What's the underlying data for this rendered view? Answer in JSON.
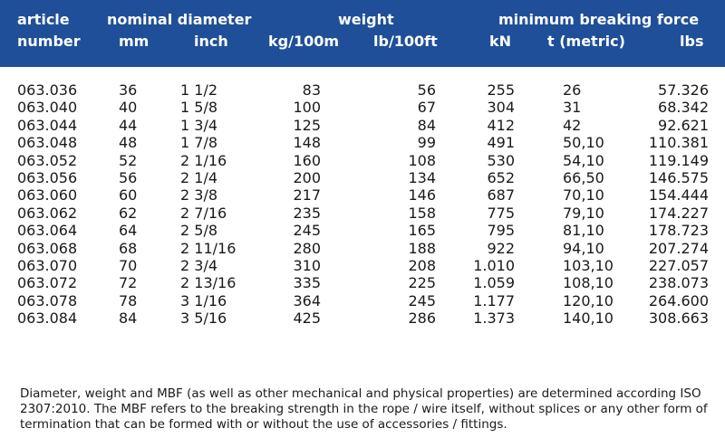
{
  "header": {
    "article_line1": "article",
    "article_line2": "number",
    "nominal_diameter": "nominal diameter",
    "mm": "mm",
    "inch": "inch",
    "weight": "weight",
    "kg100m": "kg/100m",
    "lb100ft": "lb/100ft",
    "mbf": "minimum breaking force",
    "kn": "kN",
    "tmetric": "t (metric)",
    "lbs": "lbs"
  },
  "rows": [
    {
      "article": "063.036",
      "mm": "36",
      "inch": "1 1/2",
      "kg": "83",
      "lb": "56",
      "kn": "255",
      "t": "26",
      "lbs": "57.326"
    },
    {
      "article": "063.040",
      "mm": "40",
      "inch": "1 5/8",
      "kg": "100",
      "lb": "67",
      "kn": "304",
      "t": "31",
      "lbs": "68.342"
    },
    {
      "article": "063.044",
      "mm": "44",
      "inch": "1 3/4",
      "kg": "125",
      "lb": "84",
      "kn": "412",
      "t": "42",
      "lbs": "92.621"
    },
    {
      "article": "063.048",
      "mm": "48",
      "inch": "1 7/8",
      "kg": "148",
      "lb": "99",
      "kn": "491",
      "t": "50,10",
      "lbs": "110.381"
    },
    {
      "article": "063.052",
      "mm": "52",
      "inch": "2 1/16",
      "kg": "160",
      "lb": "108",
      "kn": "530",
      "t": "54,10",
      "lbs": "119.149"
    },
    {
      "article": "063.056",
      "mm": "56",
      "inch": "2 1/4",
      "kg": "200",
      "lb": "134",
      "kn": "652",
      "t": "66,50",
      "lbs": "146.575"
    },
    {
      "article": "063.060",
      "mm": "60",
      "inch": "2 3/8",
      "kg": "217",
      "lb": "146",
      "kn": "687",
      "t": "70,10",
      "lbs": "154.444"
    },
    {
      "article": "063.062",
      "mm": "62",
      "inch": "2 7/16",
      "kg": "235",
      "lb": "158",
      "kn": "775",
      "t": "79,10",
      "lbs": "174.227"
    },
    {
      "article": "063.064",
      "mm": "64",
      "inch": "2 5/8",
      "kg": "245",
      "lb": "165",
      "kn": "795",
      "t": "81,10",
      "lbs": "178.723"
    },
    {
      "article": "063.068",
      "mm": "68",
      "inch": "2 11/16",
      "kg": "280",
      "lb": "188",
      "kn": "922",
      "t": "94,10",
      "lbs": "207.274"
    },
    {
      "article": "063.070",
      "mm": "70",
      "inch": "2 3/4",
      "kg": "310",
      "lb": "208",
      "kn": "1.010",
      "t": "103,10",
      "lbs": "227.057"
    },
    {
      "article": "063.072",
      "mm": "72",
      "inch": "2 13/16",
      "kg": "335",
      "lb": "225",
      "kn": "1.059",
      "t": "108,10",
      "lbs": "238.073"
    },
    {
      "article": "063.078",
      "mm": "78",
      "inch": "3 1/16",
      "kg": "364",
      "lb": "245",
      "kn": "1.177",
      "t": "120,10",
      "lbs": "264.600"
    },
    {
      "article": "063.084",
      "mm": "84",
      "inch": "3 5/16",
      "kg": "425",
      "lb": "286",
      "kn": "1.373",
      "t": "140,10",
      "lbs": "308.663"
    }
  ],
  "footnote": "Diameter, weight and MBF (as well as other mechanical and physical properties) are determined according ISO 2307:2010. The MBF refers to the breaking strength in the rope / wire itself, without splices or any other form of termination that can be formed with or without the use of accessories / fittings.",
  "colors": {
    "header_bg": "#1f4f98",
    "header_text": "#ffffff"
  }
}
